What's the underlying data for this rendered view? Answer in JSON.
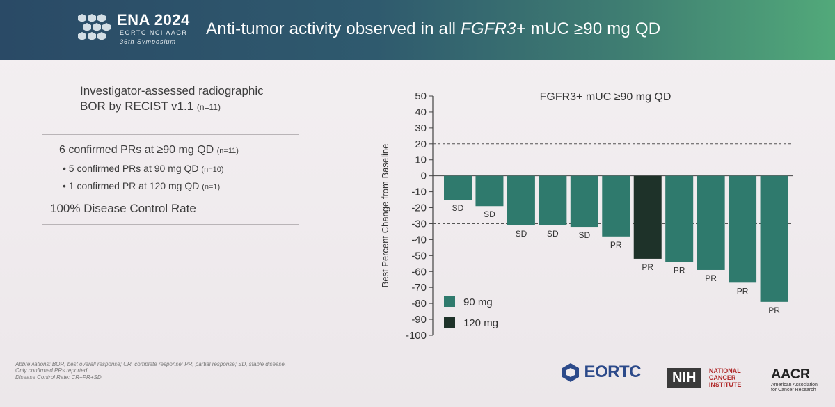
{
  "header": {
    "conference": "ENA 2024",
    "organizers": "EORTC  NCI  AACR",
    "symposium": "36th Symposium",
    "title_pre": "Anti-tumor activity observed in all ",
    "title_italic": "FGFR3+",
    "title_post": " mUC ≥90 mg QD"
  },
  "left_panel": {
    "bor_line1": "Investigator-assessed radiographic",
    "bor_line2": "BOR by RECIST v1.1 ",
    "bor_n": "(n=11)",
    "stat1": "6 confirmed PRs at ≥90 mg QD ",
    "stat1_n": "(n=11)",
    "stat2": "• 5 confirmed PRs at 90 mg QD ",
    "stat2_n": "(n=10)",
    "stat3": "• 1 confirmed PR at 120 mg QD ",
    "stat3_n": "(n=1)",
    "stat4": "100% Disease Control Rate"
  },
  "footnotes": {
    "line1": "Abbreviations: BOR, best overall response; CR, complete response; PR, partial response; SD, stable disease.",
    "line2": "Only confirmed PRs reported.",
    "line3": "Disease Control Rate: CR+PR+SD"
  },
  "logos": {
    "eortc": "EORTC",
    "nih": "NIH",
    "nci_line1": "NATIONAL",
    "nci_line2": "CANCER",
    "nci_line3": "INSTITUTE",
    "aacr": "AACR",
    "aacr_line1": "American Association",
    "aacr_line2": "for Cancer Research"
  },
  "colors": {
    "bar_90": "#2f7a6d",
    "bar_120": "#1e3229",
    "axis": "#444444"
  },
  "chart_data": {
    "type": "bar",
    "title": "FGFR3+ mUC ≥90 mg QD",
    "ylabel": "Best Percent Change from Baseline",
    "ylim": [
      -100,
      50
    ],
    "yticks": [
      50,
      40,
      30,
      20,
      10,
      0,
      -10,
      -20,
      -30,
      -40,
      -50,
      -60,
      -70,
      -80,
      -90,
      -100
    ],
    "reference_lines": [
      20,
      -30
    ],
    "values": [
      -15,
      -19,
      -31,
      -31,
      -32,
      -38,
      -52,
      -54,
      -59,
      -67,
      -79
    ],
    "labels": [
      "SD",
      "SD",
      "SD",
      "SD",
      "SD",
      "PR",
      "PR",
      "PR",
      "PR",
      "PR",
      "PR"
    ],
    "dose_group": [
      "90 mg",
      "90 mg",
      "90 mg",
      "90 mg",
      "90 mg",
      "90 mg",
      "120 mg",
      "90 mg",
      "90 mg",
      "90 mg",
      "90 mg"
    ],
    "legend": [
      {
        "name": "90 mg",
        "color": "#2f7a6d"
      },
      {
        "name": "120 mg",
        "color": "#1e3229"
      }
    ],
    "legend_position": "bottom-left"
  }
}
